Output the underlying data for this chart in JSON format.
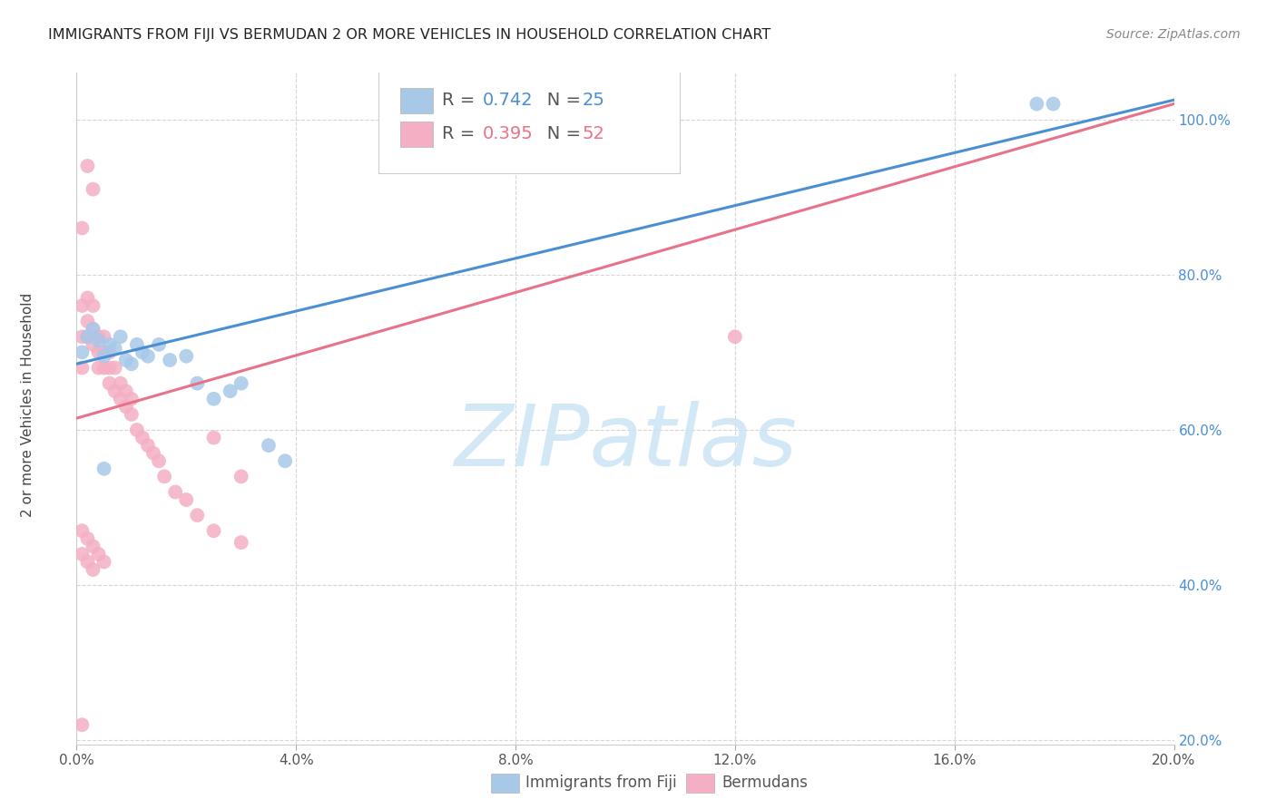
{
  "title": "IMMIGRANTS FROM FIJI VS BERMUDAN 2 OR MORE VEHICLES IN HOUSEHOLD CORRELATION CHART",
  "source": "Source: ZipAtlas.com",
  "ylabel": "2 or more Vehicles in Household",
  "legend_R_blue": "0.742",
  "legend_N_blue": "25",
  "legend_R_pink": "0.395",
  "legend_N_pink": "52",
  "legend_label_blue": "Immigrants from Fiji",
  "legend_label_pink": "Bermudans",
  "xlim": [
    0.0,
    0.2
  ],
  "ylim": [
    0.195,
    1.06
  ],
  "yticks": [
    0.2,
    0.4,
    0.6,
    0.8,
    1.0
  ],
  "xticks": [
    0.0,
    0.04,
    0.08,
    0.12,
    0.16,
    0.2
  ],
  "blue_scatter_color": "#a8c8e8",
  "pink_scatter_color": "#f4afc4",
  "blue_line_color": "#4a8fd4",
  "pink_line_color": "#e8728a",
  "blue_text_color": "#4a8fd4",
  "pink_text_color": "#e8728a",
  "yaxis_tick_color": "#4a8fd4",
  "watermark_color": "#cce4f5",
  "watermark": "ZIPatlas",
  "blue_line_x0": 0.0,
  "blue_line_y0": 0.685,
  "blue_line_x1": 0.2,
  "blue_line_y1": 1.025,
  "pink_line_x0": 0.0,
  "pink_line_y0": 0.615,
  "pink_line_x1": 0.2,
  "pink_line_y1": 1.02,
  "fiji_x": [
    0.001,
    0.002,
    0.003,
    0.004,
    0.005,
    0.006,
    0.007,
    0.008,
    0.009,
    0.01,
    0.011,
    0.012,
    0.013,
    0.015,
    0.017,
    0.02,
    0.022,
    0.025,
    0.028,
    0.03,
    0.035,
    0.038,
    0.175,
    0.178,
    0.005
  ],
  "fiji_y": [
    0.7,
    0.72,
    0.73,
    0.715,
    0.695,
    0.71,
    0.705,
    0.72,
    0.69,
    0.685,
    0.71,
    0.7,
    0.695,
    0.71,
    0.69,
    0.695,
    0.66,
    0.64,
    0.65,
    0.66,
    0.58,
    0.56,
    1.02,
    1.02,
    0.55
  ],
  "bermuda_x": [
    0.001,
    0.001,
    0.001,
    0.002,
    0.002,
    0.002,
    0.003,
    0.003,
    0.003,
    0.004,
    0.004,
    0.004,
    0.005,
    0.005,
    0.005,
    0.006,
    0.006,
    0.006,
    0.007,
    0.007,
    0.008,
    0.008,
    0.009,
    0.009,
    0.01,
    0.01,
    0.011,
    0.012,
    0.013,
    0.014,
    0.015,
    0.016,
    0.018,
    0.02,
    0.022,
    0.025,
    0.03,
    0.025,
    0.03,
    0.12,
    0.001,
    0.002,
    0.003,
    0.001,
    0.002,
    0.003,
    0.004,
    0.005,
    0.001,
    0.002,
    0.003,
    0.001
  ],
  "bermuda_y": [
    0.76,
    0.72,
    0.68,
    0.77,
    0.74,
    0.72,
    0.76,
    0.73,
    0.71,
    0.72,
    0.7,
    0.68,
    0.72,
    0.7,
    0.68,
    0.7,
    0.68,
    0.66,
    0.68,
    0.65,
    0.66,
    0.64,
    0.65,
    0.63,
    0.64,
    0.62,
    0.6,
    0.59,
    0.58,
    0.57,
    0.56,
    0.54,
    0.52,
    0.51,
    0.49,
    0.47,
    0.455,
    0.59,
    0.54,
    0.72,
    0.44,
    0.43,
    0.42,
    0.47,
    0.46,
    0.45,
    0.44,
    0.43,
    0.86,
    0.94,
    0.91,
    0.22
  ]
}
